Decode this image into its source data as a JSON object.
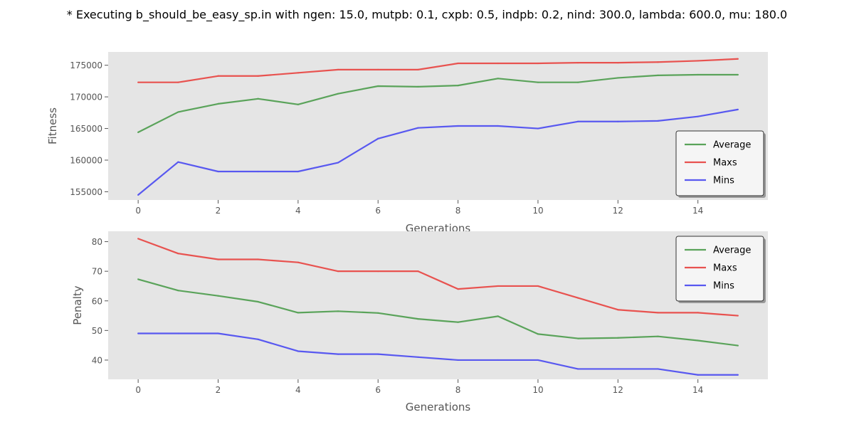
{
  "suptitle": "* Executing b_should_be_easy_sp.in with ngen: 15.0, mutpb: 0.1, cxpb: 0.5, indpb: 0.2, nind: 300.0, lambda: 600.0, mu: 180.0",
  "colors": {
    "average": "#5aa35a",
    "maxs": "#e8524f",
    "mins": "#5858f0",
    "plot_background": "#e5e5e5",
    "legend_background": "#f5f5f5",
    "legend_border": "#333333"
  },
  "chart_data": [
    {
      "type": "line",
      "xlabel": "Generations",
      "ylabel": "Fitness",
      "xlim": [
        -0.75,
        15.75
      ],
      "ylim": [
        153700,
        177100
      ],
      "xticks": [
        0,
        2,
        4,
        6,
        8,
        10,
        12,
        14
      ],
      "yticks": [
        155000,
        160000,
        165000,
        170000,
        175000
      ],
      "grid": false,
      "legend_position": "lower-right",
      "x": [
        0,
        1,
        2,
        3,
        4,
        5,
        6,
        7,
        8,
        9,
        10,
        11,
        12,
        13,
        14,
        15
      ],
      "series": [
        {
          "name": "Average",
          "color_key": "average",
          "values": [
            164400,
            167600,
            168900,
            169700,
            168800,
            170500,
            171700,
            171600,
            171800,
            172900,
            172300,
            172300,
            173000,
            173400,
            173500,
            173500
          ]
        },
        {
          "name": "Maxs",
          "color_key": "maxs",
          "values": [
            172300,
            172300,
            173300,
            173300,
            173800,
            174300,
            174300,
            174300,
            175300,
            175300,
            175300,
            175400,
            175400,
            175500,
            175700,
            176000
          ]
        },
        {
          "name": "Mins",
          "color_key": "mins",
          "values": [
            154500,
            159700,
            158200,
            158200,
            158200,
            159600,
            163400,
            165100,
            165400,
            165400,
            165000,
            166100,
            166100,
            166200,
            166900,
            168000
          ]
        }
      ]
    },
    {
      "type": "line",
      "xlabel": "Generations",
      "ylabel": "Penalty",
      "xlim": [
        -0.75,
        15.75
      ],
      "ylim": [
        33.5,
        83.5
      ],
      "xticks": [
        0,
        2,
        4,
        6,
        8,
        10,
        12,
        14
      ],
      "yticks": [
        40,
        50,
        60,
        70,
        80
      ],
      "grid": false,
      "legend_position": "upper-right",
      "x": [
        0,
        1,
        2,
        3,
        4,
        5,
        6,
        7,
        8,
        9,
        10,
        11,
        12,
        13,
        14,
        15
      ],
      "series": [
        {
          "name": "Average",
          "color_key": "average",
          "values": [
            67.3,
            63.5,
            61.7,
            59.7,
            56.0,
            56.5,
            55.9,
            53.9,
            52.8,
            54.8,
            48.8,
            47.3,
            47.5,
            48.0,
            46.6,
            44.9
          ]
        },
        {
          "name": "Maxs",
          "color_key": "maxs",
          "values": [
            81,
            76,
            74,
            74,
            73,
            70,
            70,
            70,
            64,
            65,
            65,
            61,
            57,
            56,
            56,
            55
          ]
        },
        {
          "name": "Mins",
          "color_key": "mins",
          "values": [
            49,
            49,
            49,
            47,
            43,
            42,
            42,
            41,
            40,
            40,
            40,
            37,
            37,
            37,
            35,
            35
          ]
        }
      ]
    }
  ]
}
